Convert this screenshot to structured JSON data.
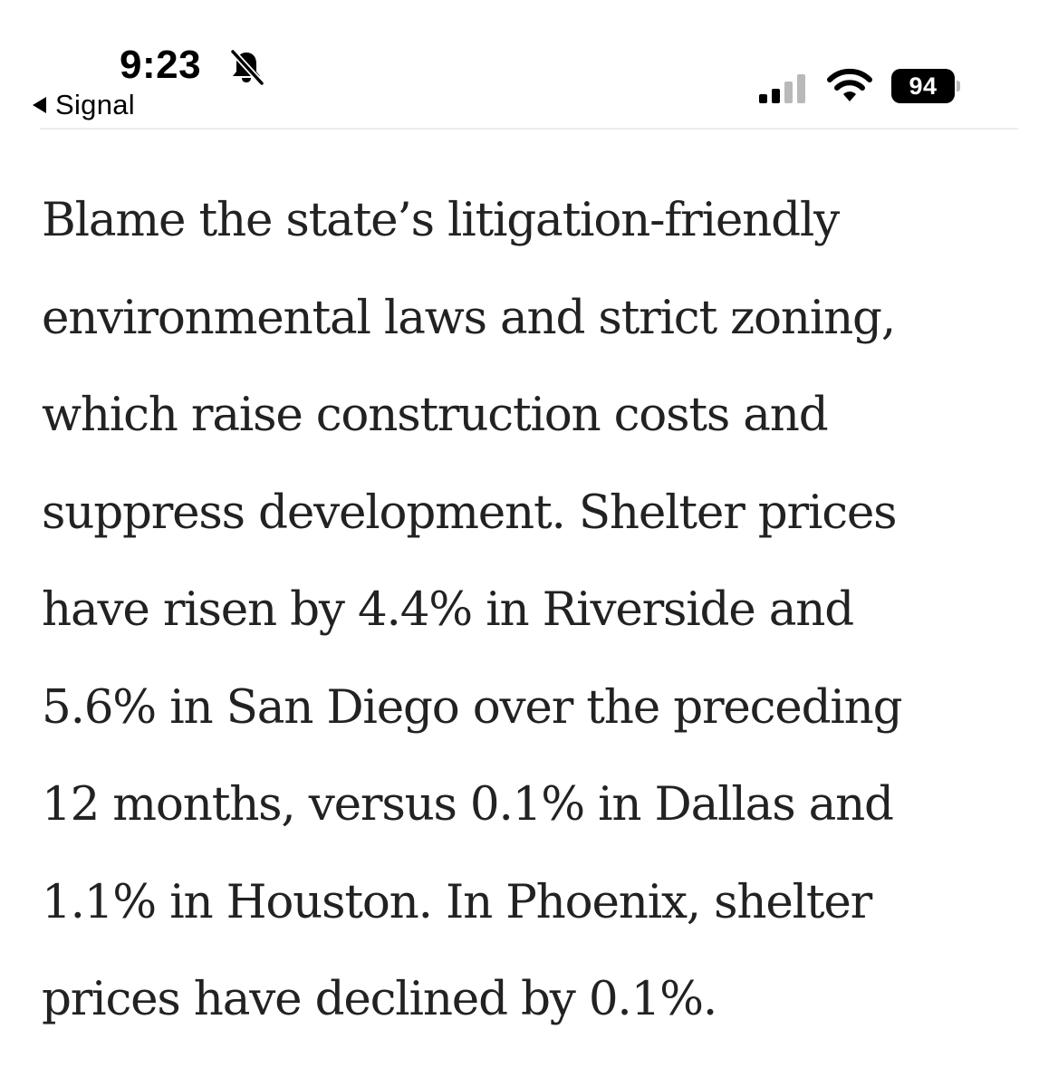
{
  "status_bar": {
    "time": "9:23",
    "back_app_label": "Signal",
    "battery_level": "94",
    "icons": {
      "silent_mode": "bell-slash-icon",
      "cellular": "cellular-signal-icon",
      "wifi": "wifi-icon",
      "battery": "battery-icon",
      "back": "back-arrow-icon"
    },
    "cellular_bars_filled": 2,
    "cellular_bars_total": 4
  },
  "article": {
    "lines": [
      "Blame the state’s litigation-friendly",
      "environmental laws and strict zoning,",
      "which raise construction costs and",
      "suppress development. Shelter prices",
      "have risen by 4.4% in Riverside and",
      "5.6% in San Diego over the preceding",
      "12 months, versus 0.1% in Dallas and",
      "1.1% in Houston. In Phoenix, shelter",
      "prices have declined by 0.1%."
    ]
  },
  "colors": {
    "text": "#222222",
    "status_text": "#000000",
    "bar_active": "#000000",
    "bar_inactive": "#b9b9b9",
    "background": "#ffffff"
  }
}
